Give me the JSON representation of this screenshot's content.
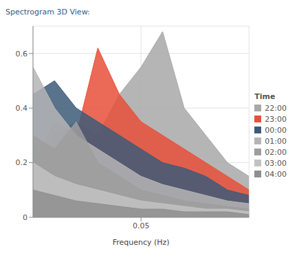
{
  "chart_data": {
    "type": "area",
    "title": "Spectrogram 3D View:",
    "x_label": "Frequency (Hz)",
    "legend_title": "Time",
    "x": [
      0,
      0.01,
      0.02,
      0.03,
      0.04,
      0.05,
      0.06,
      0.07,
      0.08,
      0.09,
      0.1
    ],
    "xlim": [
      0,
      0.1
    ],
    "xticks": [
      0.05
    ],
    "ylim": [
      0,
      0.7
    ],
    "yticks": [
      0,
      0.2,
      0.4,
      0.6
    ],
    "grid": true,
    "legend": "right",
    "series": [
      {
        "name": "22:00",
        "color": "#a8a8a8",
        "values": [
          0.15,
          0.3,
          0.35,
          0.3,
          0.45,
          0.55,
          0.68,
          0.4,
          0.3,
          0.2,
          0.15
        ]
      },
      {
        "name": "23:00",
        "color": "#e8503a",
        "values": [
          0.2,
          0.35,
          0.3,
          0.62,
          0.45,
          0.35,
          0.3,
          0.25,
          0.2,
          0.15,
          0.1
        ]
      },
      {
        "name": "00:00",
        "color": "#3d5a78",
        "values": [
          0.45,
          0.5,
          0.4,
          0.35,
          0.3,
          0.25,
          0.2,
          0.18,
          0.15,
          0.1,
          0.08
        ]
      },
      {
        "name": "01:00",
        "color": "#b5b5b5",
        "values": [
          0.55,
          0.4,
          0.3,
          0.25,
          0.2,
          0.15,
          0.12,
          0.1,
          0.08,
          0.06,
          0.05
        ]
      },
      {
        "name": "02:00",
        "color": "#9e9e9e",
        "values": [
          0.3,
          0.25,
          0.35,
          0.2,
          0.15,
          0.1,
          0.08,
          0.06,
          0.05,
          0.04,
          0.03
        ]
      },
      {
        "name": "03:00",
        "color": "#c2c2c2",
        "values": [
          0.2,
          0.15,
          0.12,
          0.1,
          0.08,
          0.06,
          0.05,
          0.04,
          0.03,
          0.03,
          0.02
        ]
      },
      {
        "name": "04:00",
        "color": "#8f8f8f",
        "values": [
          0.1,
          0.08,
          0.06,
          0.05,
          0.04,
          0.03,
          0.03,
          0.02,
          0.02,
          0.02,
          0.01
        ]
      }
    ]
  }
}
